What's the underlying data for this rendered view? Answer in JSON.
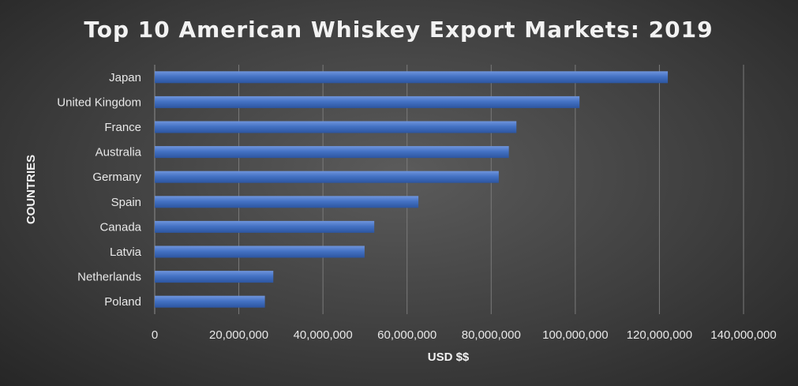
{
  "chart_data": {
    "type": "bar",
    "orientation": "horizontal",
    "title": "Top 10 American Whiskey Export Markets: 2019",
    "xlabel": "USD $$",
    "ylabel": "COUNTRIES",
    "categories": [
      "Japan",
      "United Kingdom",
      "France",
      "Australia",
      "Germany",
      "Spain",
      "Canada",
      "Latvia",
      "Netherlands",
      "Poland"
    ],
    "values": [
      122000000,
      101000000,
      86000000,
      84200000,
      81800000,
      62700000,
      52200000,
      49900000,
      28200000,
      26200000
    ],
    "xlim": [
      0,
      140000000
    ],
    "x_ticks": [
      "0",
      "20,000,000",
      "40,000,000",
      "60,000,000",
      "80,000,000",
      "100,000,000",
      "120,000,000",
      "140,000,000"
    ],
    "x_tick_values": [
      0,
      20000000,
      40000000,
      60000000,
      80000000,
      100000000,
      120000000,
      140000000
    ],
    "grid": true,
    "bar_color": "#4472c4",
    "background_color": "#404040"
  }
}
